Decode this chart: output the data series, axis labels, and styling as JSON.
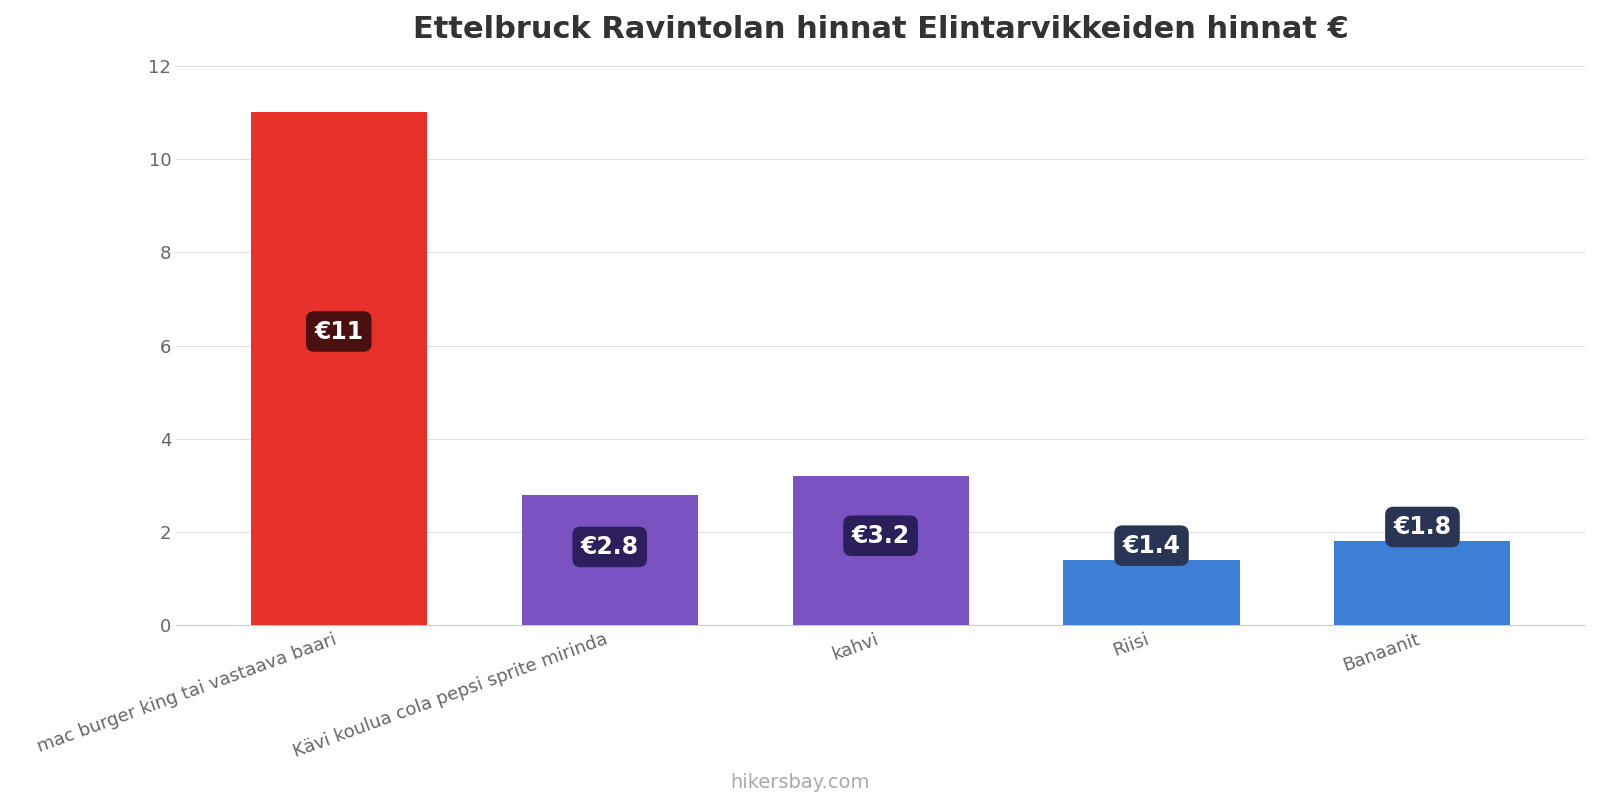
{
  "title": "Ettelbruck Ravintolan hinnat Elintarvikkeiden hinnat €",
  "categories": [
    "mac burger king tai vastaava baari",
    "Kävi koulua cola pepsi sprite mirinda",
    "kahvi",
    "Riisi",
    "Banaanit"
  ],
  "values": [
    11.0,
    2.8,
    3.2,
    1.4,
    1.8
  ],
  "bar_colors": [
    "#e8312a",
    "#7b52c1",
    "#7b52c1",
    "#3d7fd6",
    "#3d7fd6"
  ],
  "label_texts": [
    "€11",
    "€2.8",
    "€3.2",
    "€1.4",
    "€1.8"
  ],
  "label_bg_colors": [
    "#4a1010",
    "#2d1f5e",
    "#2a1f5a",
    "#2a3555",
    "#2a3555"
  ],
  "ylim": [
    0,
    12
  ],
  "yticks": [
    0,
    2,
    4,
    6,
    8,
    10,
    12
  ],
  "footer": "hikersbay.com",
  "title_fontsize": 22,
  "tick_fontsize": 13,
  "label_fontsize": 17,
  "footer_fontsize": 14,
  "background_color": "#ffffff"
}
